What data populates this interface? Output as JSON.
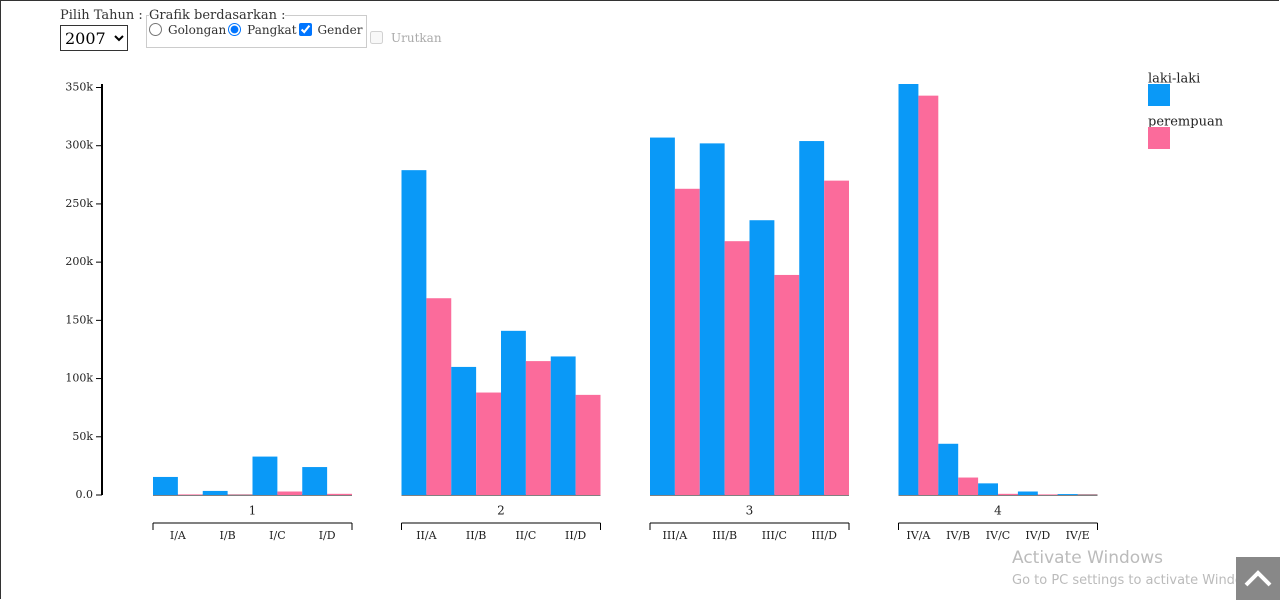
{
  "controls": {
    "year_label": "Pilih Tahun :",
    "year_selected": "2007",
    "mode_legend": "Grafik berdasarkan :",
    "options": [
      {
        "label": "Golongan",
        "kind": "radio",
        "checked": false,
        "disabled": false
      },
      {
        "label": "Pangkat",
        "kind": "radio",
        "checked": true,
        "disabled": false
      },
      {
        "label": "Gender",
        "kind": "checkbox",
        "checked": true,
        "disabled": false
      },
      {
        "label": "Urutkan",
        "kind": "checkbox",
        "checked": false,
        "disabled": true
      }
    ]
  },
  "watermark": {
    "title": "Activate Windows",
    "text": "Go to PC settings to activate Windows."
  },
  "chart_data": {
    "type": "bar",
    "groups": [
      {
        "label": "1",
        "categories": [
          "I/A",
          "I/B",
          "I/C",
          "I/D"
        ]
      },
      {
        "label": "2",
        "categories": [
          "II/A",
          "II/B",
          "II/C",
          "II/D"
        ]
      },
      {
        "label": "3",
        "categories": [
          "III/A",
          "III/B",
          "III/C",
          "III/D"
        ]
      },
      {
        "label": "4",
        "categories": [
          "IV/A",
          "IV/B",
          "IV/C",
          "IV/D",
          "IV/E"
        ]
      }
    ],
    "series": [
      {
        "name": "laki-laki",
        "color": "#0a99f7",
        "values": [
          15500,
          3500,
          33000,
          24000,
          279000,
          110000,
          141000,
          119000,
          307000,
          302000,
          236000,
          304000,
          353000,
          44000,
          10000,
          3000,
          800
        ]
      },
      {
        "name": "perempuan",
        "color": "#fb6b9b",
        "values": [
          500,
          300,
          3000,
          1000,
          169000,
          88000,
          115000,
          86000,
          263000,
          218000,
          189000,
          270000,
          343000,
          15000,
          1000,
          500,
          200
        ]
      }
    ],
    "ylim": [
      0,
      353000
    ],
    "yticks": [
      {
        "value": 0,
        "label": "0.0"
      },
      {
        "value": 50000,
        "label": "50k"
      },
      {
        "value": 100000,
        "label": "100k"
      },
      {
        "value": 150000,
        "label": "150k"
      },
      {
        "value": 200000,
        "label": "200k"
      },
      {
        "value": 250000,
        "label": "250k"
      },
      {
        "value": 300000,
        "label": "300k"
      },
      {
        "value": 350000,
        "label": "350k"
      }
    ],
    "legend": "top-right"
  }
}
